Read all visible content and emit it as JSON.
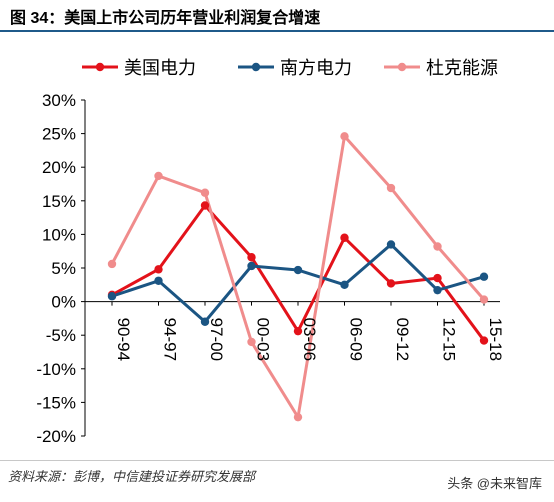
{
  "header": {
    "title": "图 34：美国上市公司历年营业利润复合增速"
  },
  "footer": {
    "source": "资料来源：彭博，中信建投证券研究发展部",
    "watermark": "头条 @未来智库"
  },
  "colors": {
    "series": [
      "#e3121a",
      "#1b5583",
      "#f08c8c"
    ],
    "axis": "#000000"
  },
  "chart_data": {
    "type": "line",
    "categories": [
      "90-94",
      "94-97",
      "97-00",
      "00-03",
      "03-06",
      "06-09",
      "09-12",
      "12-15",
      "15-18"
    ],
    "series": [
      {
        "name": "美国电力",
        "values": [
          1.0,
          4.8,
          14.3,
          6.6,
          -4.4,
          9.5,
          2.7,
          3.5,
          -5.8
        ]
      },
      {
        "name": "南方电力",
        "values": [
          0.8,
          3.1,
          -3.0,
          5.3,
          4.7,
          2.5,
          8.5,
          1.7,
          3.7
        ]
      },
      {
        "name": "杜克能源",
        "values": [
          5.6,
          18.7,
          16.2,
          -6.0,
          -17.2,
          24.6,
          16.9,
          8.2,
          0.3
        ]
      }
    ],
    "ylim": [
      -20,
      30
    ],
    "yticks": [
      "30%",
      "25%",
      "20%",
      "15%",
      "10%",
      "5%",
      "0%",
      "-5%",
      "-10%",
      "-15%",
      "-20%"
    ],
    "ytick_values": [
      30,
      25,
      20,
      15,
      10,
      5,
      0,
      -5,
      -10,
      -15,
      -20
    ],
    "legend_position": "top",
    "grid": false
  }
}
